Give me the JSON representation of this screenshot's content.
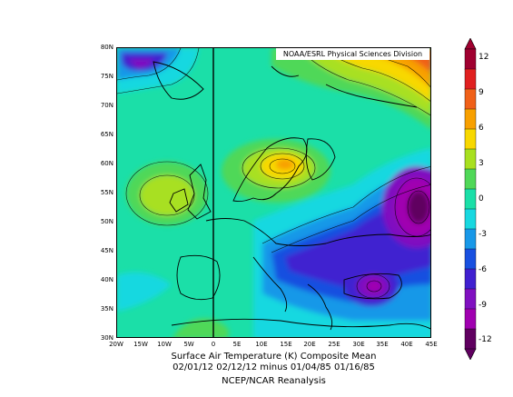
{
  "map": {
    "credit": "NOAA/ESRL Physical Sciences Division",
    "lat_labels": [
      "80N",
      "75N",
      "70N",
      "65N",
      "60N",
      "55N",
      "50N",
      "45N",
      "40N",
      "35N",
      "30N"
    ],
    "lon_labels": [
      "20W",
      "15W",
      "10W",
      "5W",
      "0",
      "5E",
      "10E",
      "15E",
      "20E",
      "25E",
      "30E",
      "35E",
      "40E",
      "45E"
    ]
  },
  "caption": {
    "line1": "Surface Air Temperature (K) Composite Mean",
    "line2": "02/01/12 02/12/12 minus 01/04/85 01/16/85",
    "line3": "NCEP/NCAR Reanalysis"
  },
  "colorbar": {
    "labels": [
      "12",
      "9",
      "6",
      "3",
      "0",
      "-3",
      "-6",
      "-9",
      "-12"
    ],
    "colors": [
      "#a00030",
      "#e02020",
      "#f06018",
      "#f8a000",
      "#f8d800",
      "#a8e020",
      "#50d858",
      "#1bdfa8",
      "#18d8e0",
      "#1898e8",
      "#1850e0",
      "#4020d0",
      "#8010c0",
      "#a000b0",
      "#600060"
    ]
  }
}
